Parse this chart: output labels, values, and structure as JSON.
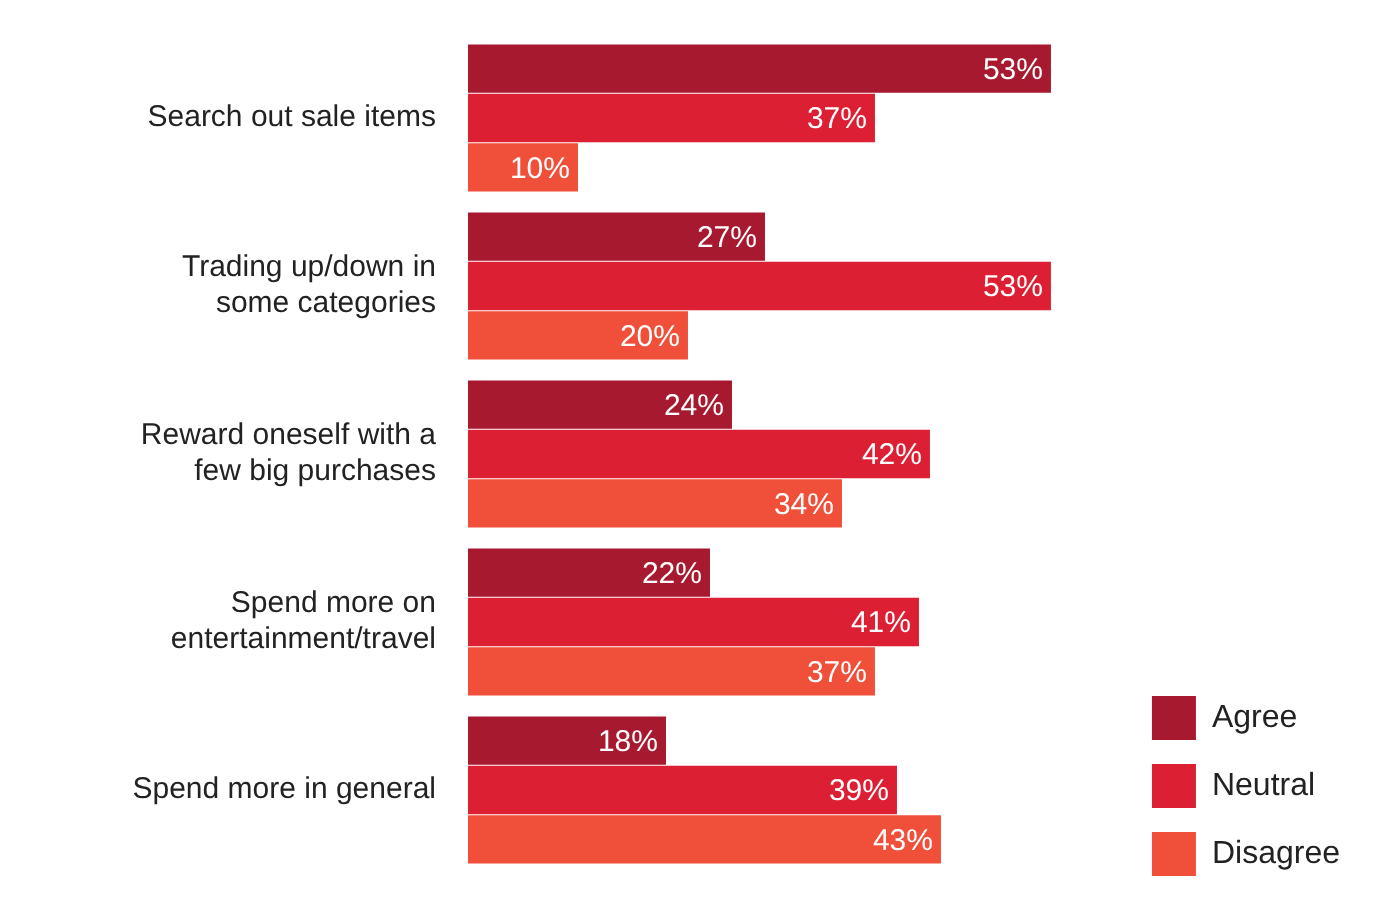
{
  "chart_data": {
    "type": "bar",
    "orientation": "horizontal",
    "categories": [
      "Search out sale items",
      "Trading up/down in some categories",
      "Reward oneself with a few big purchases",
      "Spend more on entertainment/travel",
      "Spend more in general"
    ],
    "series": [
      {
        "name": "Agree",
        "color": "#a6192e",
        "values": [
          53,
          27,
          24,
          22,
          18
        ],
        "value_labels": [
          "53%",
          "27%",
          "24%",
          "22%",
          "18%"
        ]
      },
      {
        "name": "Neutral",
        "color": "#dc1f33",
        "values": [
          37,
          53,
          42,
          41,
          39
        ],
        "value_labels": [
          "37%",
          "53%",
          "42%",
          "41%",
          "39%"
        ]
      },
      {
        "name": "Disagree",
        "color": "#f04f3a",
        "values": [
          10,
          20,
          34,
          37,
          43
        ],
        "value_labels": [
          "10%",
          "20%",
          "34%",
          "37%",
          "43%"
        ]
      }
    ],
    "legend": "bottom right"
  }
}
